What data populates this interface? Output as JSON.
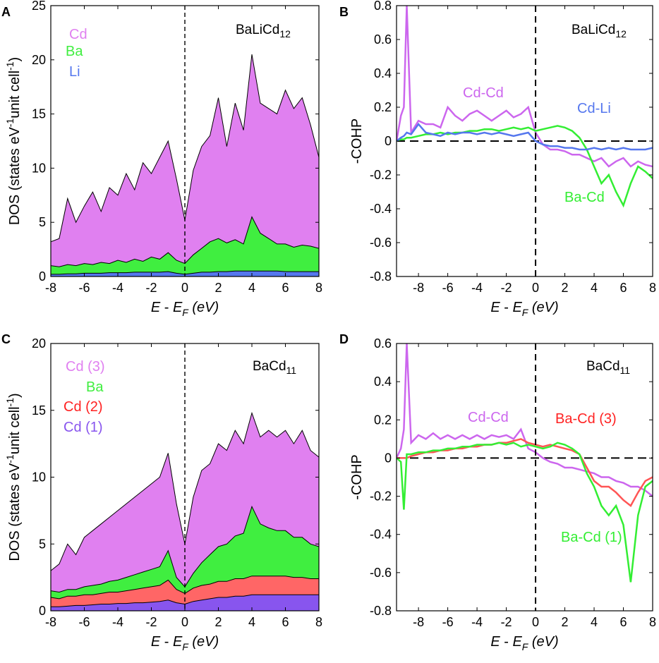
{
  "colors": {
    "cd": "#e080f0",
    "ba": "#40ee40",
    "li": "#5577ee",
    "cd2": "#ff6666",
    "cd1": "#8855ee",
    "cd_line": "#cc66ee",
    "red_line": "#ff5555",
    "green_line": "#33ee33",
    "blue_line": "#5577ee"
  },
  "chart_data": [
    {
      "panel": "A",
      "type": "area",
      "title": "BaLiCd12",
      "formula": {
        "base": "BaLiCd",
        "sub": "12"
      },
      "xlabel": "E - EF (eV)",
      "ylabel": "DOS (states eV-1unit cell-1)",
      "xlim": [
        -8,
        8
      ],
      "ylim": [
        0,
        25
      ],
      "xticks": [
        -8,
        -6,
        -4,
        -2,
        0,
        2,
        4,
        6,
        8
      ],
      "yticks": [
        0,
        5,
        10,
        15,
        20,
        25
      ],
      "legend": [
        {
          "label": "Cd",
          "color": "#e080f0"
        },
        {
          "label": "Ba",
          "color": "#40ee40"
        },
        {
          "label": "Li",
          "color": "#5577ee"
        }
      ],
      "x": [
        -8,
        -7.5,
        -7,
        -6.5,
        -6,
        -5.5,
        -5,
        -4.5,
        -4,
        -3.5,
        -3,
        -2.5,
        -2,
        -1.5,
        -1,
        -0.5,
        0,
        0.5,
        1,
        1.5,
        2,
        2.5,
        3,
        3.5,
        4,
        4.5,
        5,
        5.5,
        6,
        6.5,
        7,
        7.5,
        8
      ],
      "series": [
        {
          "name": "Li",
          "values": [
            0.2,
            0.2,
            0.25,
            0.25,
            0.3,
            0.3,
            0.3,
            0.35,
            0.35,
            0.35,
            0.4,
            0.4,
            0.4,
            0.4,
            0.45,
            0.3,
            0.2,
            0.3,
            0.4,
            0.4,
            0.45,
            0.45,
            0.5,
            0.5,
            0.5,
            0.5,
            0.5,
            0.5,
            0.45,
            0.45,
            0.45,
            0.45,
            0.45
          ]
        },
        {
          "name": "Ba",
          "values": [
            1.0,
            0.9,
            1.1,
            1.0,
            1.2,
            1.1,
            1.3,
            1.2,
            1.5,
            1.3,
            1.6,
            1.4,
            1.8,
            1.6,
            2.2,
            1.5,
            1.2,
            2.0,
            2.6,
            3.2,
            3.5,
            3.1,
            3.4,
            3.0,
            5.5,
            4.0,
            3.5,
            3.0,
            3.0,
            2.7,
            2.9,
            2.8,
            2.6
          ]
        },
        {
          "name": "Cd",
          "values": [
            3.2,
            3.5,
            7.2,
            5.0,
            6.5,
            7.8,
            6.0,
            8.2,
            7.5,
            9.5,
            8.0,
            10.5,
            9.5,
            11.0,
            12.5,
            9.0,
            5.2,
            9.8,
            12.0,
            13.0,
            16.5,
            12.0,
            16.0,
            13.5,
            20.5,
            16.0,
            15.5,
            15.0,
            17.2,
            15.5,
            16.5,
            14.0,
            11.0
          ]
        }
      ]
    },
    {
      "panel": "B",
      "type": "line",
      "title": "BaLiCd12",
      "formula": {
        "base": "BaLiCd",
        "sub": "12"
      },
      "xlabel": "E - EF (eV)",
      "ylabel": "-COHP",
      "xlim": [
        -9.5,
        8
      ],
      "ylim": [
        -0.8,
        0.8
      ],
      "xticks": [
        -8,
        -6,
        -4,
        -2,
        0,
        2,
        4,
        6,
        8
      ],
      "yticks": [
        -0.8,
        -0.6,
        -0.4,
        -0.2,
        0,
        0.2,
        0.4,
        0.6,
        0.8
      ],
      "annotations": [
        {
          "text": "Cd-Cd",
          "color": "#cc66ee"
        },
        {
          "text": "Cd-Li",
          "color": "#5577ee"
        },
        {
          "text": "Ba-Cd",
          "color": "#33ee33"
        }
      ],
      "x": [
        -9.5,
        -9.2,
        -9.0,
        -8.8,
        -8.5,
        -8.0,
        -7.5,
        -7.0,
        -6.5,
        -6.0,
        -5.5,
        -5.0,
        -4.5,
        -4.0,
        -3.5,
        -3.0,
        -2.5,
        -2.0,
        -1.5,
        -1.0,
        -0.5,
        0.0,
        0.5,
        1.0,
        1.5,
        2.0,
        2.5,
        3.0,
        3.5,
        4.0,
        4.5,
        5.0,
        5.5,
        6.0,
        6.5,
        7.0,
        7.5,
        8.0
      ],
      "series": [
        {
          "name": "Cd-Cd",
          "color": "#cc66ee",
          "values": [
            0.0,
            0.15,
            0.2,
            0.8,
            0.05,
            0.12,
            0.1,
            0.1,
            0.08,
            0.2,
            0.15,
            0.12,
            0.16,
            0.18,
            0.15,
            0.12,
            0.15,
            0.18,
            0.14,
            0.16,
            0.2,
            0.05,
            -0.02,
            -0.05,
            -0.05,
            -0.06,
            -0.08,
            -0.08,
            -0.1,
            -0.12,
            -0.1,
            -0.15,
            -0.12,
            -0.1,
            -0.15,
            -0.12,
            -0.14,
            -0.15
          ]
        },
        {
          "name": "Ba-Cd",
          "color": "#33ee33",
          "values": [
            0.0,
            0.01,
            0.01,
            0.02,
            0.02,
            0.03,
            0.04,
            0.04,
            0.05,
            0.04,
            0.05,
            0.05,
            0.06,
            0.06,
            0.07,
            0.07,
            0.06,
            0.07,
            0.08,
            0.07,
            0.08,
            0.06,
            0.07,
            0.08,
            0.09,
            0.08,
            0.06,
            0.02,
            -0.05,
            -0.15,
            -0.25,
            -0.2,
            -0.3,
            -0.38,
            -0.25,
            -0.15,
            -0.18,
            -0.22
          ]
        },
        {
          "name": "Cd-Li",
          "color": "#5577ee",
          "values": [
            0.0,
            0.02,
            0.03,
            0.05,
            0.04,
            0.1,
            0.05,
            0.04,
            0.03,
            0.05,
            0.04,
            0.05,
            0.05,
            0.04,
            0.05,
            0.04,
            0.05,
            0.04,
            0.03,
            0.04,
            0.05,
            0.0,
            -0.02,
            -0.03,
            -0.03,
            -0.04,
            -0.04,
            -0.05,
            -0.05,
            -0.04,
            -0.05,
            -0.04,
            -0.05,
            -0.04,
            -0.05,
            -0.05,
            -0.05,
            -0.04
          ]
        }
      ]
    },
    {
      "panel": "C",
      "type": "area",
      "title": "BaCd11",
      "formula": {
        "base": "BaCd",
        "sub": "11"
      },
      "xlabel": "E - EF (eV)",
      "ylabel": "DOS (states eV-1unit cell-1)",
      "xlim": [
        -8,
        8
      ],
      "ylim": [
        0,
        20
      ],
      "xticks": [
        -8,
        -6,
        -4,
        -2,
        0,
        2,
        4,
        6,
        8
      ],
      "yticks": [
        0,
        5,
        10,
        15,
        20
      ],
      "legend": [
        {
          "label": "Cd (3)",
          "color": "#e080f0"
        },
        {
          "label": "Ba",
          "color": "#40ee40"
        },
        {
          "label": "Cd (2)",
          "color": "#ff2222"
        },
        {
          "label": "Cd (1)",
          "color": "#8855ee"
        }
      ],
      "x": [
        -8,
        -7.5,
        -7,
        -6.5,
        -6,
        -5.5,
        -5,
        -4.5,
        -4,
        -3.5,
        -3,
        -2.5,
        -2,
        -1.5,
        -1,
        -0.5,
        0,
        0.5,
        1,
        1.5,
        2,
        2.5,
        3,
        3.5,
        4,
        4.5,
        5,
        5.5,
        6,
        6.5,
        7,
        7.5,
        8
      ],
      "series": [
        {
          "name": "Cd (1)",
          "values": [
            0.3,
            0.3,
            0.35,
            0.4,
            0.4,
            0.45,
            0.5,
            0.5,
            0.55,
            0.55,
            0.6,
            0.6,
            0.65,
            0.7,
            0.8,
            0.6,
            0.5,
            0.7,
            0.8,
            0.9,
            1.0,
            1.0,
            1.1,
            1.1,
            1.2,
            1.2,
            1.2,
            1.2,
            1.2,
            1.2,
            1.2,
            1.2,
            1.2
          ]
        },
        {
          "name": "Cd (2)",
          "values": [
            1.0,
            0.9,
            1.1,
            1.1,
            1.2,
            1.2,
            1.3,
            1.4,
            1.4,
            1.5,
            1.6,
            1.7,
            1.8,
            1.9,
            2.3,
            1.6,
            1.3,
            1.7,
            1.9,
            2.0,
            2.2,
            2.2,
            2.4,
            2.4,
            2.6,
            2.6,
            2.6,
            2.6,
            2.6,
            2.5,
            2.5,
            2.4,
            2.4
          ]
        },
        {
          "name": "Ba",
          "values": [
            1.5,
            1.4,
            1.6,
            1.6,
            1.8,
            1.9,
            2.0,
            2.2,
            2.3,
            2.5,
            2.7,
            2.9,
            3.1,
            3.3,
            4.5,
            2.5,
            1.8,
            2.8,
            3.6,
            4.2,
            4.8,
            5.0,
            5.6,
            5.8,
            7.8,
            6.5,
            6.2,
            6.0,
            6.0,
            5.5,
            5.5,
            5.0,
            4.8
          ]
        },
        {
          "name": "Cd (3)",
          "values": [
            3.0,
            3.5,
            5.0,
            4.2,
            5.5,
            6.0,
            6.5,
            7.0,
            7.5,
            8.0,
            8.5,
            9.0,
            9.5,
            10.0,
            11.8,
            8.0,
            5.0,
            8.5,
            10.5,
            11.0,
            12.5,
            12.0,
            13.5,
            12.5,
            14.8,
            13.0,
            13.5,
            13.0,
            13.5,
            12.5,
            13.5,
            12.0,
            11.5
          ]
        }
      ]
    },
    {
      "panel": "D",
      "type": "line",
      "title": "BaCd11",
      "formula": {
        "base": "BaCd",
        "sub": "11"
      },
      "xlabel": "E - EF (eV)",
      "ylabel": "-COHP",
      "xlim": [
        -9.5,
        8
      ],
      "ylim": [
        -0.8,
        0.6
      ],
      "xticks": [
        -8,
        -6,
        -4,
        -2,
        0,
        2,
        4,
        6,
        8
      ],
      "yticks": [
        -0.8,
        -0.6,
        -0.4,
        -0.2,
        0,
        0.2,
        0.4,
        0.6
      ],
      "annotations": [
        {
          "text": "Cd-Cd",
          "color": "#cc66ee"
        },
        {
          "text": "Ba-Cd (3)",
          "color": "#ff2222"
        },
        {
          "text": "Ba-Cd (1)",
          "color": "#33ee33"
        }
      ],
      "x": [
        -9.5,
        -9.2,
        -9.0,
        -8.8,
        -8.5,
        -8.0,
        -7.5,
        -7.0,
        -6.5,
        -6.0,
        -5.5,
        -5.0,
        -4.5,
        -4.0,
        -3.5,
        -3.0,
        -2.5,
        -2.0,
        -1.5,
        -1.0,
        -0.5,
        0.0,
        0.5,
        1.0,
        1.5,
        2.0,
        2.5,
        3.0,
        3.5,
        4.0,
        4.5,
        5.0,
        5.5,
        6.0,
        6.5,
        7.0,
        7.5,
        8.0
      ],
      "series": [
        {
          "name": "Cd-Cd",
          "color": "#cc66ee",
          "values": [
            0.0,
            0.05,
            0.15,
            0.6,
            0.08,
            0.12,
            0.1,
            0.13,
            0.1,
            0.12,
            0.1,
            0.12,
            0.1,
            0.12,
            0.1,
            0.12,
            0.11,
            0.12,
            0.1,
            0.15,
            0.05,
            0.03,
            0.0,
            -0.02,
            -0.03,
            -0.05,
            -0.05,
            -0.06,
            -0.07,
            -0.08,
            -0.1,
            -0.1,
            -0.12,
            -0.13,
            -0.15,
            -0.15,
            -0.17,
            -0.2
          ]
        },
        {
          "name": "Ba-Cd (3)",
          "color": "#ff5555",
          "values": [
            0.0,
            0.0,
            0.0,
            0.0,
            0.01,
            0.02,
            0.03,
            0.03,
            0.04,
            0.04,
            0.05,
            0.05,
            0.06,
            0.06,
            0.07,
            0.07,
            0.08,
            0.08,
            0.09,
            0.1,
            0.08,
            0.07,
            0.06,
            0.07,
            0.06,
            0.05,
            0.04,
            0.02,
            -0.05,
            -0.12,
            -0.15,
            -0.15,
            -0.18,
            -0.22,
            -0.25,
            -0.18,
            -0.12,
            -0.1
          ]
        },
        {
          "name": "Ba-Cd (1)",
          "color": "#33ee33",
          "values": [
            0.0,
            -0.02,
            -0.27,
            0.02,
            0.02,
            0.03,
            0.03,
            0.04,
            0.04,
            0.05,
            0.05,
            0.06,
            0.06,
            0.07,
            0.07,
            0.07,
            0.08,
            0.07,
            0.08,
            0.06,
            0.07,
            0.06,
            0.05,
            0.06,
            0.08,
            0.07,
            0.05,
            0.02,
            -0.08,
            -0.15,
            -0.25,
            -0.3,
            -0.25,
            -0.35,
            -0.65,
            -0.3,
            -0.15,
            -0.12
          ]
        }
      ]
    }
  ]
}
